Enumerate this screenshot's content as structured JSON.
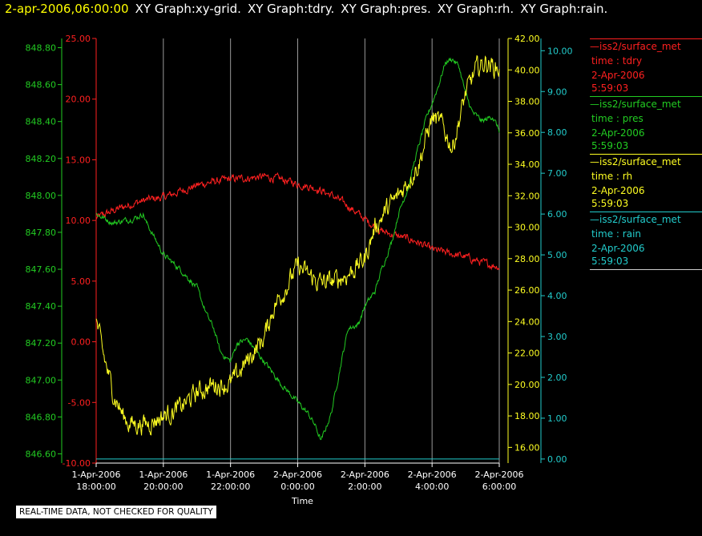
{
  "header": {
    "timestamp": "2-apr-2006,06:00:00",
    "graphs": [
      "XY Graph:xy-grid.",
      "XY Graph:tdry.",
      "XY Graph:pres.",
      "XY Graph:rh.",
      "XY Graph:rain."
    ]
  },
  "legend": [
    {
      "name": "—iss2/surface_met",
      "var": "time : tdry",
      "date": "2-Apr-2006",
      "time": "5:59:03",
      "color": "#ff2020"
    },
    {
      "name": "—iss2/surface_met",
      "var": "time : pres",
      "date": "2-Apr-2006",
      "time": "5:59:03",
      "color": "#22cc22"
    },
    {
      "name": "—iss2/surface_met",
      "var": "time : rh",
      "date": "2-Apr-2006",
      "time": "5:59:03",
      "color": "#ffff22"
    },
    {
      "name": "—iss2/surface_met",
      "var": "time : rain",
      "date": "2-Apr-2006",
      "time": "5:59:03",
      "color": "#22cccc"
    }
  ],
  "quality_note": "REAL-TIME DATA, NOT CHECKED FOR QUALITY",
  "chart_data": {
    "type": "line",
    "xlabel": "Time",
    "xlim_hours": [
      0,
      12
    ],
    "x_ticks": [
      {
        "h": 0,
        "d": "1-Apr-2006",
        "t": "18:00:00"
      },
      {
        "h": 2,
        "d": "1-Apr-2006",
        "t": "20:00:00"
      },
      {
        "h": 4,
        "d": "1-Apr-2006",
        "t": "22:00:00"
      },
      {
        "h": 6,
        "d": "2-Apr-2006",
        "t": "0:00:00"
      },
      {
        "h": 8,
        "d": "2-Apr-2006",
        "t": "2:00:00"
      },
      {
        "h": 10,
        "d": "2-Apr-2006",
        "t": "4:00:00"
      },
      {
        "h": 12,
        "d": "2-Apr-2006",
        "t": "6:00:00"
      }
    ],
    "grid": "vertical",
    "axes": {
      "pres": {
        "side": "left-outer",
        "color": "#22cc22",
        "ylim": [
          846.55,
          848.85
        ],
        "ticks": [
          "846.60",
          "846.80",
          "847.00",
          "847.20",
          "847.40",
          "847.60",
          "847.80",
          "848.00",
          "848.20",
          "848.40",
          "848.60",
          "848.80"
        ]
      },
      "tdry": {
        "side": "left-inner",
        "color": "#ff2020",
        "ylim": [
          -10,
          25
        ],
        "ticks": [
          "-10.00",
          "-5.00",
          "0.00",
          "5.00",
          "10.00",
          "15.00",
          "20.00",
          "25.00"
        ]
      },
      "rh": {
        "side": "right-inner",
        "color": "#ffff22",
        "ylim": [
          15,
          42
        ],
        "ticks": [
          "16.00",
          "18.00",
          "20.00",
          "22.00",
          "24.00",
          "26.00",
          "28.00",
          "30.00",
          "32.00",
          "34.00",
          "36.00",
          "38.00",
          "40.00",
          "42.00"
        ]
      },
      "rain": {
        "side": "right-outer",
        "color": "#22cccc",
        "ylim": [
          -0.1,
          10.3
        ],
        "ticks": [
          "0.00",
          "1.00",
          "2.00",
          "3.00",
          "4.00",
          "5.00",
          "6.00",
          "7.00",
          "8.00",
          "9.00",
          "10.00"
        ]
      }
    },
    "series": [
      {
        "name": "tdry",
        "axis": "tdry",
        "color": "#ff2020",
        "noise": 0.25,
        "x": [
          0,
          0.5,
          1,
          1.5,
          2,
          2.5,
          3,
          3.5,
          4,
          4.5,
          5,
          5.5,
          6,
          6.5,
          7,
          7.5,
          8,
          8.5,
          9,
          9.5,
          10,
          10.5,
          11,
          11.5,
          12
        ],
        "y": [
          10.2,
          10.8,
          11.3,
          11.7,
          11.9,
          12.4,
          12.9,
          13.2,
          13.4,
          13.5,
          13.6,
          13.4,
          13.0,
          12.7,
          12.1,
          11.2,
          10.1,
          9.1,
          8.7,
          8.3,
          7.6,
          7.3,
          7.0,
          6.5,
          6.2
        ]
      },
      {
        "name": "pres",
        "axis": "pres",
        "color": "#22cc22",
        "noise": 0.012,
        "x": [
          0,
          0.5,
          1,
          1.2,
          1.4,
          1.5,
          1.8,
          2,
          2.5,
          3,
          3.3,
          3.5,
          3.7,
          4,
          4.2,
          4.5,
          5,
          5.5,
          6,
          6.3,
          6.5,
          6.7,
          7,
          7.3,
          7.5,
          7.8,
          8,
          8.3,
          8.5,
          8.8,
          9,
          9.3,
          9.5,
          9.8,
          10,
          10.2,
          10.4,
          10.6,
          10.8,
          11,
          11.2,
          11.5,
          11.8,
          12
        ],
        "y": [
          847.9,
          847.85,
          847.87,
          847.88,
          847.9,
          847.85,
          847.75,
          847.68,
          847.6,
          847.5,
          847.35,
          847.28,
          847.15,
          847.1,
          847.2,
          847.22,
          847.1,
          846.98,
          846.88,
          846.82,
          846.76,
          846.67,
          846.82,
          847.1,
          847.28,
          847.3,
          847.4,
          847.48,
          847.6,
          847.75,
          847.9,
          848.05,
          848.2,
          848.4,
          848.5,
          848.6,
          848.72,
          848.74,
          848.7,
          848.55,
          848.45,
          848.4,
          848.43,
          848.35
        ]
      },
      {
        "name": "rh",
        "axis": "rh",
        "color": "#ffff22",
        "noise": 0.5,
        "x": [
          0,
          0.2,
          0.5,
          0.8,
          1,
          1.5,
          2,
          2.5,
          3,
          3.5,
          4,
          4.5,
          5,
          5.3,
          5.6,
          6,
          6.3,
          6.6,
          7,
          7.5,
          8,
          8.3,
          8.6,
          9,
          9.3,
          9.6,
          10,
          10.3,
          10.6,
          11,
          11.3,
          11.6,
          12
        ],
        "y": [
          24.0,
          22.0,
          19.5,
          18.0,
          17.5,
          17.5,
          18.0,
          18.5,
          19.5,
          20.0,
          20.0,
          21.5,
          23.0,
          25.0,
          26.0,
          27.5,
          27.0,
          26.5,
          26.5,
          27.0,
          28.0,
          30.0,
          31.0,
          32.0,
          33.0,
          34.0,
          37.0,
          36.5,
          35.0,
          38.5,
          40.0,
          40.5,
          40.0
        ]
      },
      {
        "name": "rain",
        "axis": "rain",
        "color": "#22cccc",
        "noise": 0,
        "x": [
          0,
          12
        ],
        "y": [
          0,
          0
        ]
      }
    ]
  }
}
